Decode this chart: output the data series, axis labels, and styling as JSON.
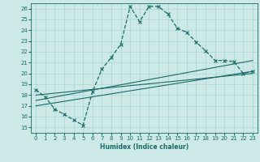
{
  "xlabel": "Humidex (Indice chaleur)",
  "xlim": [
    -0.5,
    23.5
  ],
  "ylim": [
    14.5,
    26.5
  ],
  "xticks": [
    0,
    1,
    2,
    3,
    4,
    5,
    6,
    7,
    8,
    9,
    10,
    11,
    12,
    13,
    14,
    15,
    16,
    17,
    18,
    19,
    20,
    21,
    22,
    23
  ],
  "yticks": [
    15,
    16,
    17,
    18,
    19,
    20,
    21,
    22,
    23,
    24,
    25,
    26
  ],
  "background_color": "#cce9e7",
  "grid_color": "#a8d5d3",
  "line_color": "#1a6b68",
  "line1_x": [
    0,
    1,
    2,
    3,
    4,
    5,
    6,
    7,
    8,
    9,
    10,
    11,
    12,
    13,
    14,
    15,
    16,
    17,
    18,
    19,
    20,
    21,
    22,
    23
  ],
  "line1_y": [
    18.5,
    17.8,
    16.7,
    16.2,
    15.7,
    15.2,
    18.3,
    20.4,
    21.5,
    22.7,
    26.2,
    24.8,
    26.2,
    26.2,
    25.5,
    24.2,
    23.8,
    22.9,
    22.1,
    21.2,
    21.2,
    21.1,
    20.0,
    20.2
  ],
  "line2_x": [
    0,
    23
  ],
  "line2_y": [
    17.0,
    20.2
  ],
  "line3_x": [
    0,
    23
  ],
  "line3_y": [
    17.5,
    21.2
  ],
  "line4_x": [
    0,
    23
  ],
  "line4_y": [
    18.0,
    20.0
  ]
}
